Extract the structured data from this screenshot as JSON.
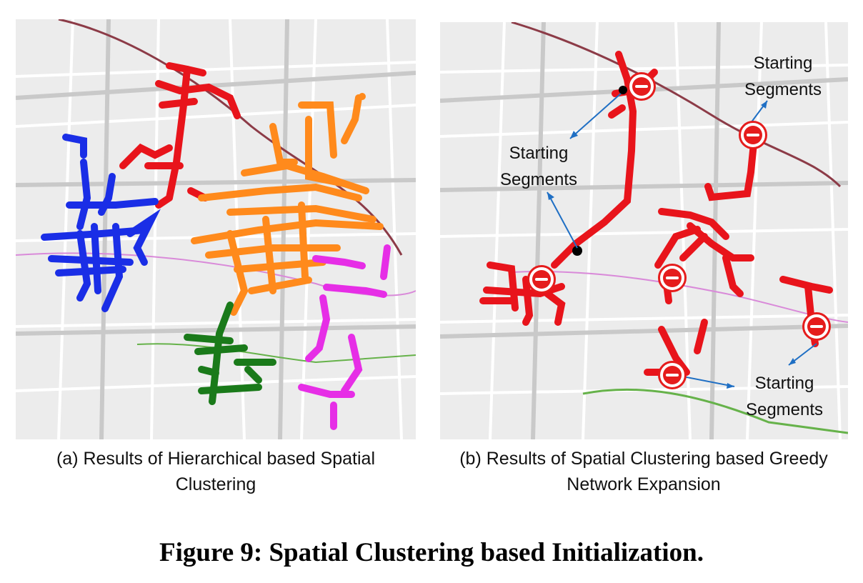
{
  "figure": {
    "title": "Figure 9: Spatial Clustering based Initialization."
  },
  "panels": [
    {
      "id": "a",
      "caption_line1": "(a) Results of Hierarchical based Spatial",
      "caption_line2": "Clustering",
      "cluster_colors": [
        "#e8141b",
        "#1a2ee6",
        "#ff8a1c",
        "#e62ee6",
        "#1a7a1a"
      ]
    },
    {
      "id": "b",
      "caption_line1": "(b) Results of Spatial Clustering based Greedy",
      "caption_line2": "Network Expansion",
      "network_color": "#e8141b",
      "annotations": [
        {
          "line1": "Starting",
          "line2": "Segments"
        },
        {
          "line1": "Starting",
          "line2": "Segments"
        },
        {
          "line1": "Starting",
          "line2": "Segments"
        }
      ],
      "marker_icon": "metro-station-icon",
      "arrow_color": "#1f6fc4"
    }
  ]
}
